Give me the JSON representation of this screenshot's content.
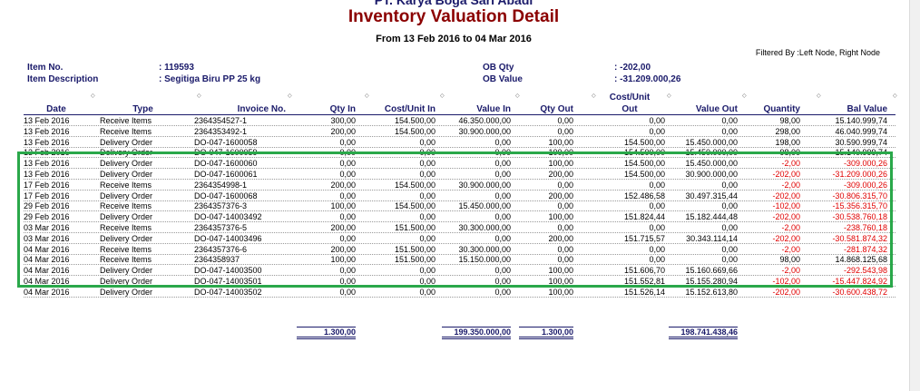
{
  "report": {
    "company": "PT. Karya Boga Sari Abadi",
    "title": "Inventory Valuation Detail",
    "period": "From 13 Feb 2016 to 04 Mar 2016",
    "filter": "Filtered By :Left Node, Right Node"
  },
  "item_info": {
    "item_no_label": "Item No.",
    "item_no_value": ": 119593",
    "item_desc_label": "Item Description",
    "item_desc_value": ": Segitiga Biru PP 25 kg",
    "ob_qty_label": "OB Qty",
    "ob_qty_value": ": -202,00",
    "ob_value_label": "OB Value",
    "ob_value_value": ": -31.209.000,26"
  },
  "columns": {
    "date": "Date",
    "type": "Type",
    "invoice": "Invoice No.",
    "qty_in": "Qty In",
    "cost_in": "Cost/Unit In",
    "value_in": "Value In",
    "qty_out": "Qty Out",
    "cost_out_1": "Cost/Unit",
    "cost_out_2": "Out",
    "value_out": "Value Out",
    "quantity": "Quantity",
    "bal_value": "Bal Value"
  },
  "rows": [
    {
      "date": "13 Feb 2016",
      "type": "Receive Items",
      "invoice": "2364354527-1",
      "qty_in": "300,00",
      "cost_in": "154.500,00",
      "value_in": "46.350.000,00",
      "qty_out": "0,00",
      "cost_out": "0,00",
      "value_out": "0,00",
      "quantity": "98,00",
      "bal_value": "15.140.999,74"
    },
    {
      "date": "13 Feb 2016",
      "type": "Receive Items",
      "invoice": "2364353492-1",
      "qty_in": "200,00",
      "cost_in": "154.500,00",
      "value_in": "30.900.000,00",
      "qty_out": "0,00",
      "cost_out": "0,00",
      "value_out": "0,00",
      "quantity": "298,00",
      "bal_value": "46.040.999,74"
    },
    {
      "date": "13 Feb 2016",
      "type": "Delivery Order",
      "invoice": "DO-047-1600058",
      "qty_in": "0,00",
      "cost_in": "0,00",
      "value_in": "0,00",
      "qty_out": "100,00",
      "cost_out": "154.500,00",
      "value_out": "15.450.000,00",
      "quantity": "198,00",
      "bal_value": "30.590.999,74"
    },
    {
      "date": "13 Feb 2016",
      "type": "Delivery Order",
      "invoice": "DO-047-1600059",
      "qty_in": "0,00",
      "cost_in": "0,00",
      "value_in": "0,00",
      "qty_out": "100,00",
      "cost_out": "154.500,00",
      "value_out": "15.450.000,00",
      "quantity": "98,00",
      "bal_value": "15.140.999,74"
    },
    {
      "date": "13 Feb 2016",
      "type": "Delivery Order",
      "invoice": "DO-047-1600060",
      "qty_in": "0,00",
      "cost_in": "0,00",
      "value_in": "0,00",
      "qty_out": "100,00",
      "cost_out": "154.500,00",
      "value_out": "15.450.000,00",
      "quantity": "-2,00",
      "bal_value": "-309.000,26"
    },
    {
      "date": "13 Feb 2016",
      "type": "Delivery Order",
      "invoice": "DO-047-1600061",
      "qty_in": "0,00",
      "cost_in": "0,00",
      "value_in": "0,00",
      "qty_out": "200,00",
      "cost_out": "154.500,00",
      "value_out": "30.900.000,00",
      "quantity": "-202,00",
      "bal_value": "-31.209.000,26"
    },
    {
      "date": "17 Feb 2016",
      "type": "Receive Items",
      "invoice": "2364354998-1",
      "qty_in": "200,00",
      "cost_in": "154.500,00",
      "value_in": "30.900.000,00",
      "qty_out": "0,00",
      "cost_out": "0,00",
      "value_out": "0,00",
      "quantity": "-2,00",
      "bal_value": "-309.000,26"
    },
    {
      "date": "17 Feb 2016",
      "type": "Delivery Order",
      "invoice": "DO-047-1600068",
      "qty_in": "0,00",
      "cost_in": "0,00",
      "value_in": "0,00",
      "qty_out": "200,00",
      "cost_out": "152.486,58",
      "value_out": "30.497.315,44",
      "quantity": "-202,00",
      "bal_value": "-30.806.315,70"
    },
    {
      "date": "29 Feb 2016",
      "type": "Receive Items",
      "invoice": "2364357376-3",
      "qty_in": "100,00",
      "cost_in": "154.500,00",
      "value_in": "15.450.000,00",
      "qty_out": "0,00",
      "cost_out": "0,00",
      "value_out": "0,00",
      "quantity": "-102,00",
      "bal_value": "-15.356.315,70"
    },
    {
      "date": "29 Feb 2016",
      "type": "Delivery Order",
      "invoice": "DO-047-14003492",
      "qty_in": "0,00",
      "cost_in": "0,00",
      "value_in": "0,00",
      "qty_out": "100,00",
      "cost_out": "151.824,44",
      "value_out": "15.182.444,48",
      "quantity": "-202,00",
      "bal_value": "-30.538.760,18"
    },
    {
      "date": "03 Mar 2016",
      "type": "Receive Items",
      "invoice": "2364357376-5",
      "qty_in": "200,00",
      "cost_in": "151.500,00",
      "value_in": "30.300.000,00",
      "qty_out": "0,00",
      "cost_out": "0,00",
      "value_out": "0,00",
      "quantity": "-2,00",
      "bal_value": "-238.760,18"
    },
    {
      "date": "03 Mar 2016",
      "type": "Delivery Order",
      "invoice": "DO-047-14003496",
      "qty_in": "0,00",
      "cost_in": "0,00",
      "value_in": "0,00",
      "qty_out": "200,00",
      "cost_out": "151.715,57",
      "value_out": "30.343.114,14",
      "quantity": "-202,00",
      "bal_value": "-30.581.874,32"
    },
    {
      "date": "04 Mar 2016",
      "type": "Receive Items",
      "invoice": "2364357376-6",
      "qty_in": "200,00",
      "cost_in": "151.500,00",
      "value_in": "30.300.000,00",
      "qty_out": "0,00",
      "cost_out": "0,00",
      "value_out": "0,00",
      "quantity": "-2,00",
      "bal_value": "-281.874,32"
    },
    {
      "date": "04 Mar 2016",
      "type": "Receive Items",
      "invoice": "2364358937",
      "qty_in": "100,00",
      "cost_in": "151.500,00",
      "value_in": "15.150.000,00",
      "qty_out": "0,00",
      "cost_out": "0,00",
      "value_out": "0,00",
      "quantity": "98,00",
      "bal_value": "14.868.125,68"
    },
    {
      "date": "04 Mar 2016",
      "type": "Delivery Order",
      "invoice": "DO-047-14003500",
      "qty_in": "0,00",
      "cost_in": "0,00",
      "value_in": "0,00",
      "qty_out": "100,00",
      "cost_out": "151.606,70",
      "value_out": "15.160.669,66",
      "quantity": "-2,00",
      "bal_value": "-292.543,98"
    },
    {
      "date": "04 Mar 2016",
      "type": "Delivery Order",
      "invoice": "DO-047-14003501",
      "qty_in": "0,00",
      "cost_in": "0,00",
      "value_in": "0,00",
      "qty_out": "100,00",
      "cost_out": "151.552,81",
      "value_out": "15.155.280,94",
      "quantity": "-102,00",
      "bal_value": "-15.447.824,92"
    },
    {
      "date": "04 Mar 2016",
      "type": "Delivery Order",
      "invoice": "DO-047-14003502",
      "qty_in": "0,00",
      "cost_in": "0,00",
      "value_in": "0,00",
      "qty_out": "100,00",
      "cost_out": "151.526,14",
      "value_out": "15.152.613,80",
      "quantity": "-202,00",
      "bal_value": "-30.600.438,72"
    }
  ],
  "totals": {
    "qty_in": "1.300,00",
    "value_in": "199.350.000,00",
    "qty_out": "1.300,00",
    "value_out": "198.741.438,46"
  },
  "colors": {
    "title": "#8b0000",
    "header": "#1a1a6a",
    "negative": "#e00000",
    "highlight": "#2aa84a"
  }
}
